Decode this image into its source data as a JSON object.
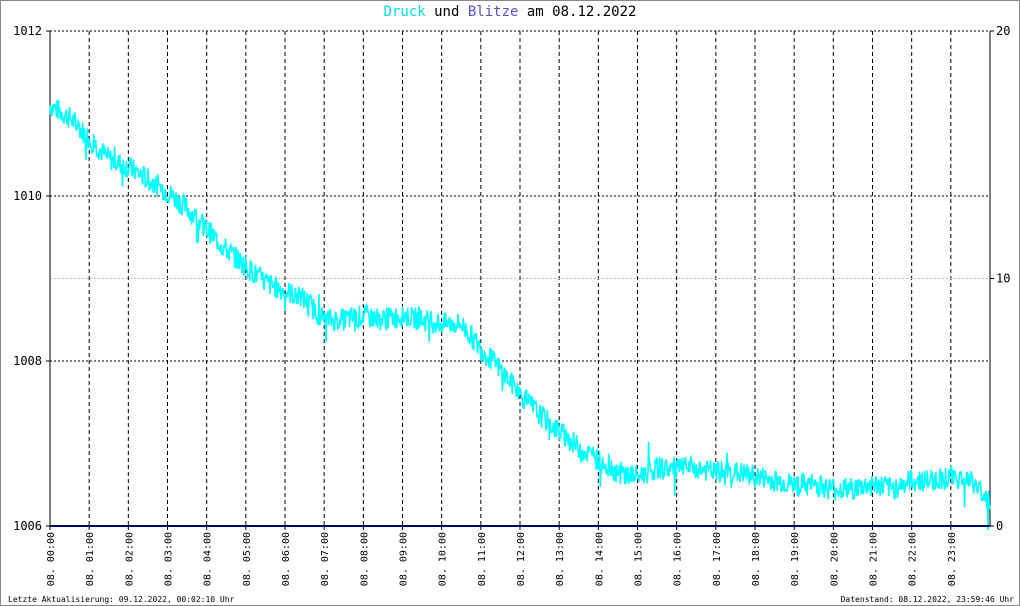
{
  "title": {
    "druck": "Druck",
    "und": "und",
    "blitze": "Blitze",
    "am": "am",
    "date": "08.12.2022"
  },
  "footer": {
    "left": "Letzte Aktualisierung: 09.12.2022, 00:02:10 Uhr",
    "right": "Datenstand: 08.12.2022, 23:59:46 Uhr"
  },
  "colors": {
    "druck": "#00ffff",
    "blitze": "#000066",
    "grid": "#000000"
  },
  "chart_data": {
    "type": "line",
    "x_unit": "hour of day",
    "xlim": [
      0,
      24
    ],
    "y_left": {
      "ylim": [
        1006,
        1012
      ],
      "ticks": [
        1006,
        1008,
        1010,
        1012
      ]
    },
    "y_right": {
      "ylim": [
        0,
        20
      ],
      "ticks": [
        0,
        10,
        20
      ]
    },
    "x_tick_labels": [
      "08. 00:00",
      "08. 01:00",
      "08. 02:00",
      "08. 03:00",
      "08. 04:00",
      "08. 05:00",
      "08. 06:00",
      "08. 07:00",
      "08. 08:00",
      "08. 09:00",
      "08. 10:00",
      "08. 11:00",
      "08. 12:00",
      "08. 13:00",
      "08. 14:00",
      "08. 15:00",
      "08. 16:00",
      "08. 17:00",
      "08. 18:00",
      "08. 19:00",
      "08. 20:00",
      "08. 21:00",
      "08. 22:00",
      "08. 23:00"
    ],
    "series": [
      {
        "name": "Druck",
        "axis": "left",
        "x": [
          0,
          0.5,
          1,
          1.5,
          2,
          2.5,
          3,
          3.5,
          4,
          4.5,
          5,
          5.5,
          6,
          6.5,
          7,
          7.5,
          8,
          8.5,
          9,
          9.5,
          10,
          10.5,
          11,
          11.5,
          12,
          12.5,
          13,
          13.5,
          14,
          14.5,
          15,
          15.5,
          16,
          16.5,
          17,
          17.5,
          18,
          18.5,
          19,
          19.5,
          20,
          20.5,
          21,
          21.5,
          22,
          22.5,
          23,
          23.5,
          24
        ],
        "values": [
          1011.1,
          1010.95,
          1010.7,
          1010.45,
          1010.35,
          1010.2,
          1010.05,
          1009.85,
          1009.6,
          1009.35,
          1009.15,
          1008.95,
          1008.85,
          1008.75,
          1008.5,
          1008.5,
          1008.55,
          1008.5,
          1008.55,
          1008.5,
          1008.45,
          1008.45,
          1008.15,
          1007.9,
          1007.6,
          1007.35,
          1007.15,
          1006.95,
          1006.8,
          1006.65,
          1006.6,
          1006.7,
          1006.7,
          1006.7,
          1006.65,
          1006.65,
          1006.6,
          1006.55,
          1006.5,
          1006.5,
          1006.45,
          1006.45,
          1006.5,
          1006.45,
          1006.55,
          1006.55,
          1006.6,
          1006.55,
          1006.3
        ]
      },
      {
        "name": "Blitze",
        "axis": "right",
        "x": [
          0,
          24
        ],
        "values": [
          0,
          0
        ]
      }
    ],
    "grid": true
  }
}
